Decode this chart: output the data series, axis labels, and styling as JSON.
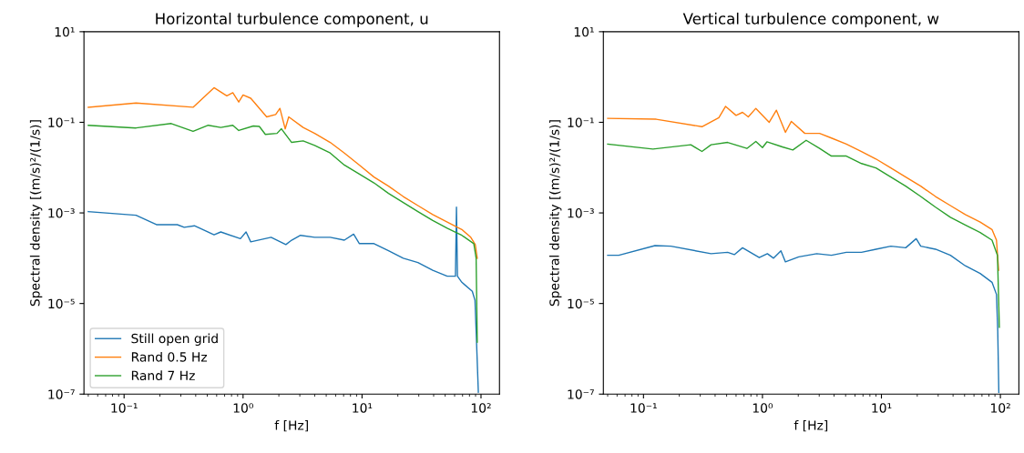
{
  "chart_data": [
    {
      "type": "line",
      "title": "Horizontal turbulence component, u",
      "xlabel": "f [Hz]",
      "ylabel": "Spectral density [(m/s)²/(1/s)]",
      "log": "xy",
      "legend": "bottom left",
      "grid": false,
      "xlim": [
        0.046,
        143
      ],
      "ylim": [
        1e-07,
        10
      ],
      "xticks": [
        {
          "value": 0.1,
          "label": "10⁻¹"
        },
        {
          "value": 1,
          "label": "10⁰"
        },
        {
          "value": 10,
          "label": "10¹"
        },
        {
          "value": 100,
          "label": "10²"
        }
      ],
      "yticks": [
        {
          "value": 1e-07,
          "label": "10⁻⁷"
        },
        {
          "value": 1e-05,
          "label": "10⁻⁵"
        },
        {
          "value": 0.001,
          "label": "10⁻³"
        },
        {
          "value": 0.1,
          "label": "10⁻¹"
        },
        {
          "value": 10,
          "label": "10¹"
        }
      ],
      "series": [
        {
          "name": "Still open grid",
          "color": "#1f77b4",
          "x": [
            0.05,
            0.126,
            0.187,
            0.28,
            0.32,
            0.39,
            0.57,
            0.65,
            0.95,
            1.06,
            1.16,
            1.72,
            2.29,
            2.56,
            3.04,
            4.0,
            5.4,
            7.1,
            8.5,
            9.5,
            12.6,
            16.7,
            22.2,
            29.5,
            39.3,
            52,
            61,
            62.2,
            63.4,
            69,
            84.5,
            89,
            91,
            95
          ],
          "values": [
            0.00107,
            0.00089,
            0.00055,
            0.00055,
            0.00048,
            0.00052,
            0.00033,
            0.00038,
            0.00027,
            0.00038,
            0.00023,
            0.00029,
            0.0002,
            0.00025,
            0.00032,
            0.00029,
            0.00029,
            0.00025,
            0.00034,
            0.00021,
            0.00021,
            0.000146,
            0.0001,
            8e-05,
            5.4e-05,
            4e-05,
            4e-05,
            0.00134,
            4e-05,
            2.94e-05,
            1.86e-05,
            1.18e-05,
            2.5e-06,
            1.1e-07
          ]
        },
        {
          "name": "Rand 0.5 Hz",
          "color": "#ff7f0e",
          "x": [
            0.05,
            0.126,
            0.38,
            0.57,
            0.73,
            0.82,
            0.92,
            1.0,
            1.16,
            1.58,
            1.88,
            2.04,
            2.26,
            2.42,
            3.2,
            4.0,
            5.4,
            7.1,
            9.5,
            12.6,
            16.7,
            22.2,
            29.5,
            39.3,
            52,
            69,
            82,
            89.5,
            93
          ],
          "values": [
            0.215,
            0.267,
            0.215,
            0.58,
            0.385,
            0.45,
            0.28,
            0.4,
            0.34,
            0.132,
            0.149,
            0.203,
            0.0716,
            0.132,
            0.077,
            0.057,
            0.036,
            0.021,
            0.0114,
            0.0062,
            0.0039,
            0.0023,
            0.00145,
            0.00092,
            0.00063,
            0.00043,
            0.00029,
            0.0002,
            0.0001
          ]
        },
        {
          "name": "Rand 7 Hz",
          "color": "#2ca02c",
          "x": [
            0.05,
            0.126,
            0.249,
            0.38,
            0.51,
            0.65,
            0.82,
            0.92,
            1.22,
            1.37,
            1.54,
            1.93,
            2.1,
            2.56,
            3.2,
            4.0,
            5.4,
            7.1,
            9.5,
            12.6,
            16.7,
            22.2,
            29.5,
            39.3,
            52,
            69,
            87,
            91,
            93
          ],
          "values": [
            0.086,
            0.075,
            0.094,
            0.063,
            0.086,
            0.077,
            0.086,
            0.066,
            0.083,
            0.081,
            0.054,
            0.057,
            0.072,
            0.036,
            0.039,
            0.031,
            0.021,
            0.0114,
            0.0072,
            0.0046,
            0.0027,
            0.0017,
            0.00107,
            0.00068,
            0.00046,
            0.00032,
            0.00021,
            0.0001,
            1.4e-06
          ]
        }
      ]
    },
    {
      "type": "line",
      "title": "Vertical turbulence component, w",
      "xlabel": "f [Hz]",
      "ylabel": "Spectral density [(m/s)²/(1/s)]",
      "log": "xy",
      "grid": false,
      "xlim": [
        0.046,
        143
      ],
      "ylim": [
        1e-07,
        10
      ],
      "xticks": [
        {
          "value": 0.1,
          "label": "10⁻¹"
        },
        {
          "value": 1,
          "label": "10⁰"
        },
        {
          "value": 10,
          "label": "10¹"
        },
        {
          "value": 100,
          "label": "10²"
        }
      ],
      "yticks": [
        {
          "value": 1e-07,
          "label": "10⁻⁷"
        },
        {
          "value": 1e-05,
          "label": "10⁻⁵"
        },
        {
          "value": 0.001,
          "label": "10⁻³"
        },
        {
          "value": 0.1,
          "label": "10⁻¹"
        },
        {
          "value": 10,
          "label": "10¹"
        }
      ],
      "series": [
        {
          "color": "#1f77b4",
          "x": [
            0.05,
            0.062,
            0.125,
            0.17,
            0.37,
            0.51,
            0.58,
            0.68,
            0.94,
            1.1,
            1.24,
            1.43,
            1.56,
            2.02,
            2.86,
            3.8,
            5.07,
            6.8,
            9.0,
            12.0,
            16.0,
            19.6,
            21.4,
            28.5,
            38,
            50.7,
            67.6,
            85,
            92.7,
            95,
            97
          ],
          "values": [
            0.000116,
            0.000116,
            0.00019,
            0.000184,
            0.000126,
            0.000135,
            0.00012,
            0.00017,
            0.000103,
            0.000126,
            0.0001,
            0.000146,
            8.3e-05,
            0.000107,
            0.000126,
            0.000116,
            0.000135,
            0.000135,
            0.000158,
            0.000184,
            0.00017,
            0.00027,
            0.000184,
            0.000158,
            0.000116,
            6.8e-05,
            4.6e-05,
            2.94e-05,
            1.59e-05,
            2.5e-06,
            1.1e-07
          ]
        },
        {
          "color": "#ff7f0e",
          "x": [
            0.05,
            0.128,
            0.31,
            0.43,
            0.49,
            0.6,
            0.68,
            0.76,
            0.88,
            1.14,
            1.31,
            1.56,
            1.75,
            2.27,
            3.02,
            3.8,
            5.07,
            6.8,
            9.0,
            12.0,
            16.0,
            21.4,
            28.5,
            38,
            50.7,
            67.6,
            85,
            92.7,
            96.6
          ],
          "values": [
            0.122,
            0.117,
            0.08,
            0.126,
            0.225,
            0.142,
            0.166,
            0.132,
            0.203,
            0.1,
            0.185,
            0.06,
            0.105,
            0.057,
            0.057,
            0.045,
            0.033,
            0.0227,
            0.0155,
            0.0098,
            0.0062,
            0.0039,
            0.0023,
            0.00145,
            0.00092,
            0.00063,
            0.00043,
            0.00025,
            5.4e-05
          ]
        },
        {
          "color": "#2ca02c",
          "x": [
            0.05,
            0.12,
            0.25,
            0.31,
            0.37,
            0.51,
            0.74,
            0.88,
            1.0,
            1.09,
            1.47,
            1.8,
            2.33,
            3.02,
            3.8,
            5.07,
            6.8,
            9.0,
            12.0,
            16.0,
            21.4,
            28.5,
            38,
            50.7,
            67.6,
            85,
            94.5,
            98
          ],
          "values": [
            0.033,
            0.0257,
            0.032,
            0.0227,
            0.032,
            0.036,
            0.0265,
            0.0377,
            0.0277,
            0.037,
            0.0286,
            0.0245,
            0.04,
            0.0265,
            0.018,
            0.018,
            0.0123,
            0.0098,
            0.0062,
            0.0039,
            0.0023,
            0.00134,
            0.0008,
            0.00054,
            0.00037,
            0.00025,
            0.000116,
            3e-06
          ]
        }
      ]
    }
  ]
}
